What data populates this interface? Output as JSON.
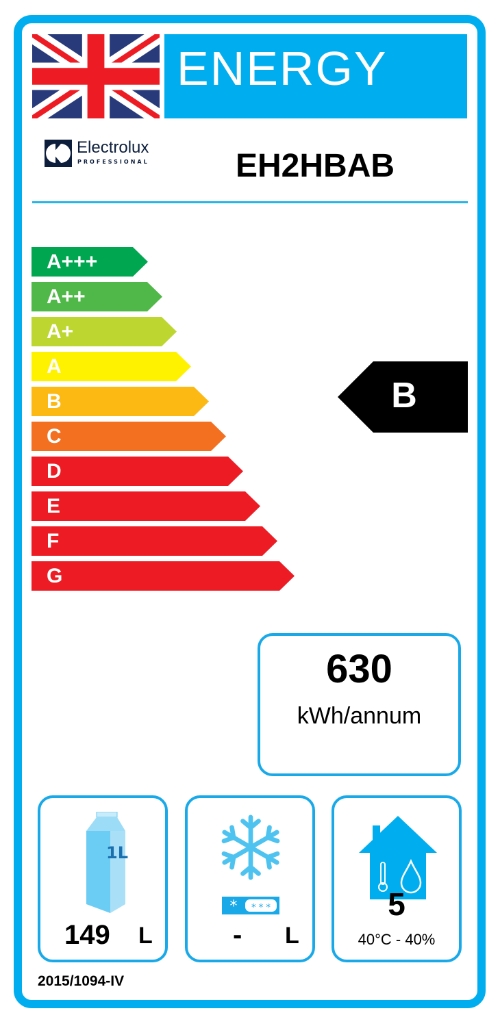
{
  "header": {
    "title": "ENERGY",
    "brand": "Electrolux",
    "brand_sub": "PROFESSIONAL",
    "model": "EH2HBAB",
    "flag_icon": "union-jack-flag"
  },
  "scale": {
    "classes": [
      {
        "label": "A+++",
        "color": "#00a650"
      },
      {
        "label": "A++",
        "color": "#50b848"
      },
      {
        "label": "A+",
        "color": "#bed630"
      },
      {
        "label": "A",
        "color": "#fff200"
      },
      {
        "label": "B",
        "color": "#fdb913"
      },
      {
        "label": "C",
        "color": "#f37021"
      },
      {
        "label": "D",
        "color": "#ed1c24"
      },
      {
        "label": "E",
        "color": "#ed1c24"
      },
      {
        "label": "F",
        "color": "#ed1c24"
      },
      {
        "label": "G",
        "color": "#ed1c24"
      }
    ],
    "rating": "B"
  },
  "consumption": {
    "value": "630",
    "unit": "kWh/annum"
  },
  "storage": {
    "chilled_value": "149",
    "chilled_unit": "L",
    "carton_label": "1L",
    "frozen_value": "-",
    "frozen_unit": "L"
  },
  "climate": {
    "class": "5",
    "conditions": "40°C - 40%"
  },
  "regulation": "2015/1094-IV",
  "colors": {
    "accent": "#00aeef"
  }
}
